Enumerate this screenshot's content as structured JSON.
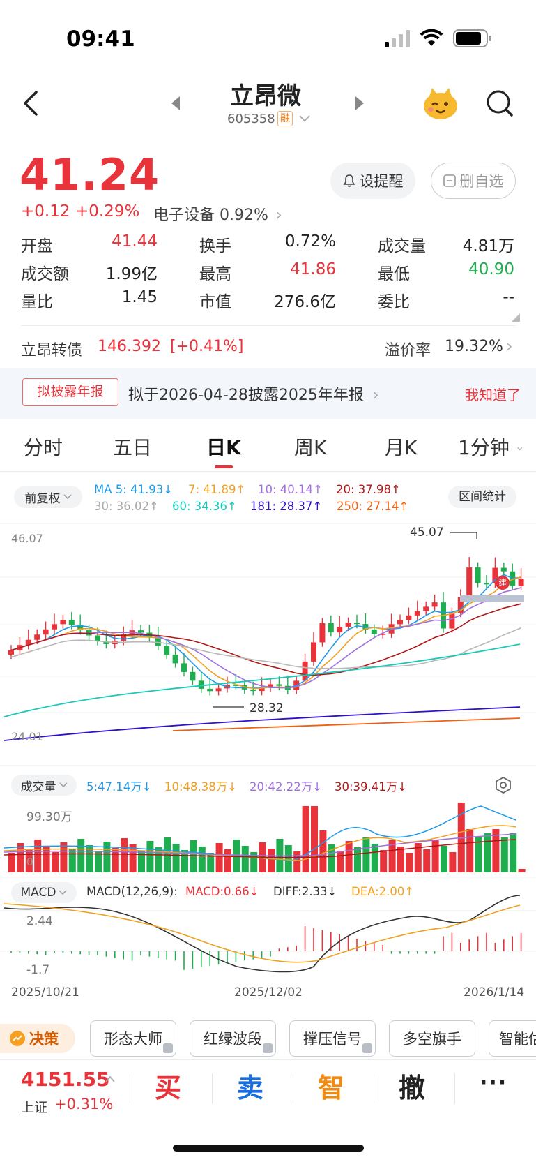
{
  "status_bar": {
    "time": "09:41"
  },
  "header": {
    "title": "立昂微",
    "code": "605358",
    "margin_badge": "融"
  },
  "quote": {
    "price": "41.24",
    "change": "+0.12",
    "change_pct": "+0.29%",
    "sector": "电子设备 0.92%",
    "alert_button": "设提醒",
    "watchlist_button": "删自选"
  },
  "stats": [
    {
      "label": "开盘",
      "value": "41.44",
      "color": "red"
    },
    {
      "label": "换手",
      "value": "0.72%",
      "color": "black"
    },
    {
      "label": "成交量",
      "value": "4.81万",
      "color": "black"
    },
    {
      "label": "成交额",
      "value": "1.99亿",
      "color": "black"
    },
    {
      "label": "最高",
      "value": "41.86",
      "color": "red"
    },
    {
      "label": "最低",
      "value": "40.90",
      "color": "green"
    },
    {
      "label": "量比",
      "value": "1.45",
      "color": "black"
    },
    {
      "label": "市值",
      "value": "276.6亿",
      "color": "black"
    },
    {
      "label": "委比",
      "value": "--",
      "color": "black"
    }
  ],
  "bond": {
    "name": "立昂转债",
    "price": "146.392",
    "change": "[+0.41%]",
    "premium_label": "溢价率",
    "premium_value": "19.32%"
  },
  "notice": {
    "tag": "拟披露年报",
    "text": "拟于2026-04-28披露2025年年报",
    "dismiss": "我知道了"
  },
  "tabs": [
    {
      "label": "分时",
      "active": false
    },
    {
      "label": "五日",
      "active": false
    },
    {
      "label": "日K",
      "active": true
    },
    {
      "label": "周K",
      "active": false
    },
    {
      "label": "月K",
      "active": false
    },
    {
      "label": "1分钟",
      "active": false
    }
  ],
  "kline": {
    "adjust": "前复权",
    "interval_stats": "区间统计",
    "ma_line1": [
      {
        "text": "MA 5: 41.93↓",
        "color": "#1e9be8"
      },
      {
        "text": "7: 41.89↑",
        "color": "#f0a020"
      },
      {
        "text": "10: 40.14↑",
        "color": "#a070e0"
      },
      {
        "text": "20: 37.98↑",
        "color": "#b01818"
      }
    ],
    "ma_line2": [
      {
        "text": "30: 36.02↑",
        "color": "#a8a8a8"
      },
      {
        "text": "60: 34.36↑",
        "color": "#18c8b8"
      },
      {
        "text": "181: 28.37↑",
        "color": "#3010c8"
      },
      {
        "text": "250: 27.14↑",
        "color": "#f06010"
      }
    ],
    "y_top": "46.07",
    "y_bottom": "24.01",
    "high_label": "45.07",
    "low_label": "28.32",
    "position_badge": "建"
  },
  "volume": {
    "label": "成交量",
    "legend": [
      {
        "text": "5:47.14万↓",
        "color": "#1e9be8"
      },
      {
        "text": "10:48.38万↓",
        "color": "#f0a020"
      },
      {
        "text": "20:42.22万↓",
        "color": "#a070e0"
      },
      {
        "text": "30:39.41万↓",
        "color": "#b01818"
      }
    ],
    "y_top": "99.30万",
    "y_zero": "0"
  },
  "macd": {
    "label": "MACD",
    "params": "MACD(12,26,9):",
    "legend": [
      {
        "text": "MACD:0.66↓",
        "color": "#e8333a"
      },
      {
        "text": "DIFF:2.33↓",
        "color": "#333333"
      },
      {
        "text": "DEA:2.00↑",
        "color": "#f0a020"
      }
    ],
    "y_top": "2.44",
    "y_bottom": "-1.7"
  },
  "dates": [
    "2025/10/21",
    "2025/12/02",
    "2026/1/14"
  ],
  "tools": {
    "decision": "决策",
    "chips": [
      "形态大师",
      "红绿波段",
      "撑压信号",
      "多空旗手",
      "智能估"
    ]
  },
  "index": {
    "value": "4151.55",
    "name": "上证",
    "change": "+0.31%"
  },
  "actions": {
    "buy": "买",
    "sell": "卖",
    "smart": "智",
    "cancel": "撤",
    "more": "···"
  }
}
